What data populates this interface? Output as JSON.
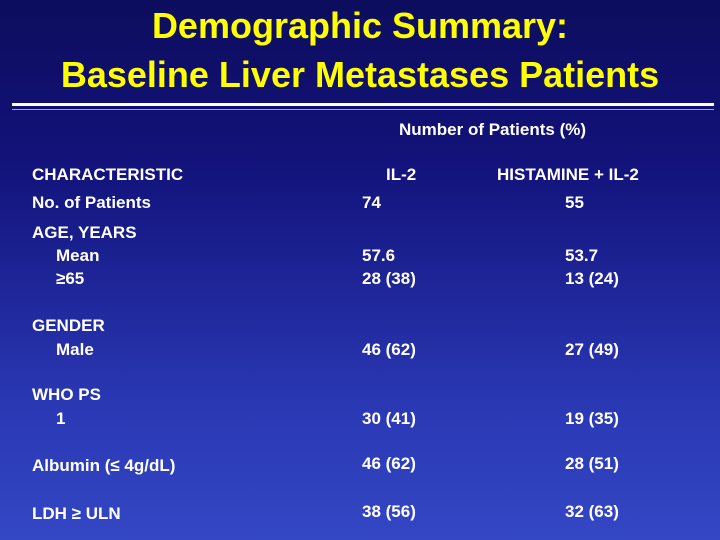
{
  "slide": {
    "title_line1": "Demographic Summary:",
    "title_line2": "Baseline Liver Metastases Patients",
    "colors": {
      "title": "#ffff00",
      "text": "#ffffff",
      "background": "#12127a"
    }
  },
  "table": {
    "group_header": "Number of Patients (%)",
    "col_characteristic": "CHARACTERISTIC",
    "col_il2": "IL-2",
    "col_hist": "HISTAMINE + IL-2",
    "rows": {
      "no_patients": {
        "label": "No. of Patients",
        "il2": "74",
        "hist": "55"
      },
      "age_header": {
        "label": "AGE, YEARS"
      },
      "age_mean": {
        "label": "Mean",
        "il2": "57.6",
        "hist": "53.7"
      },
      "age_65": {
        "label": "≥65",
        "il2": "28 (38)",
        "hist": "13 (24)"
      },
      "gender_header": {
        "label": "GENDER"
      },
      "male": {
        "label": "Male",
        "il2": "46 (62)",
        "hist": "27 (49)"
      },
      "who_header": {
        "label": "WHO PS"
      },
      "who_1": {
        "label": "1",
        "il2": "30 (41)",
        "hist": "19 (35)"
      },
      "albumin": {
        "label": "Albumin (≤ 4g/dL)",
        "il2": "46 (62)",
        "hist": "28 (51)"
      },
      "ldh": {
        "label": "LDH ≥ ULN",
        "il2": "38 (56)",
        "hist": "32 (63)"
      }
    }
  }
}
